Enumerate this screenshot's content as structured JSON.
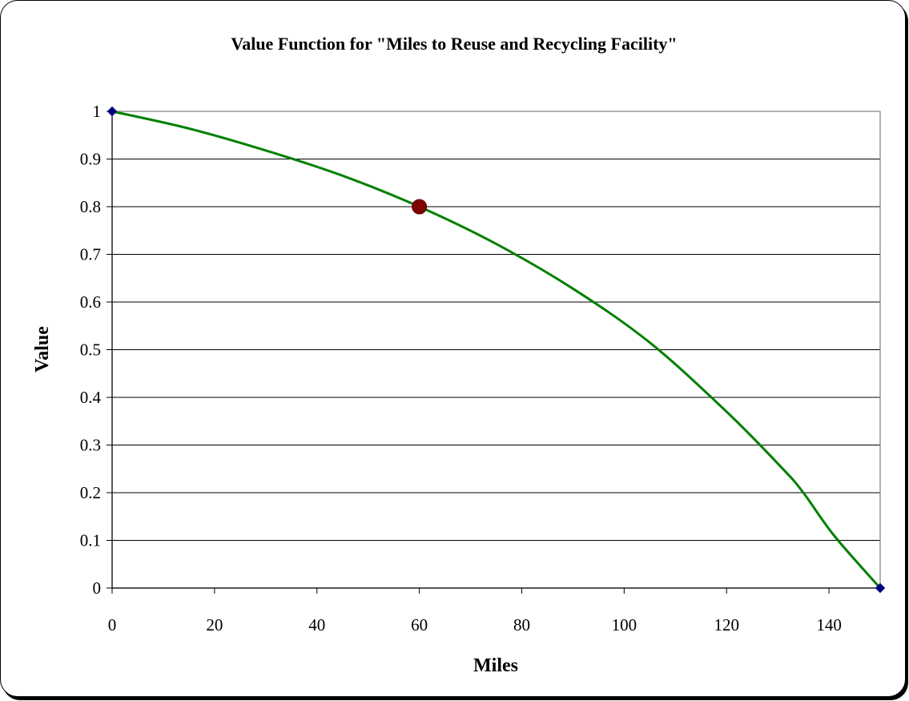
{
  "chart_data": {
    "type": "line",
    "title": "Value Function for \"Miles to Reuse and Recycling Facility\"",
    "xlabel": "Miles",
    "ylabel": "Value",
    "xlim": [
      0,
      150
    ],
    "ylim": [
      0,
      1
    ],
    "x_ticks": [
      "0",
      "20",
      "40",
      "60",
      "80",
      "100",
      "120",
      "140"
    ],
    "y_ticks": [
      "0",
      "0.1",
      "0.2",
      "0.3",
      "0.4",
      "0.5",
      "0.6",
      "0.7",
      "0.8",
      "0.9",
      "1"
    ],
    "grid": "horizontal",
    "legend": "none",
    "series": [
      {
        "kind": "curve",
        "color": "#008000",
        "x": [
          0,
          15,
          30,
          45,
          60,
          75,
          90,
          105,
          120,
          131,
          135,
          141,
          150
        ],
        "y": [
          1.0,
          0.964,
          0.918,
          0.865,
          0.8,
          0.722,
          0.628,
          0.515,
          0.37,
          0.25,
          0.2,
          0.11,
          0.0
        ]
      },
      {
        "kind": "endpoints",
        "color": "#000080",
        "marker": "diamond",
        "x": [
          0,
          150
        ],
        "y": [
          1.0,
          0.0
        ]
      },
      {
        "kind": "highlight",
        "color": "#800000",
        "marker": "circle",
        "x": [
          60
        ],
        "y": [
          0.8
        ]
      }
    ]
  }
}
